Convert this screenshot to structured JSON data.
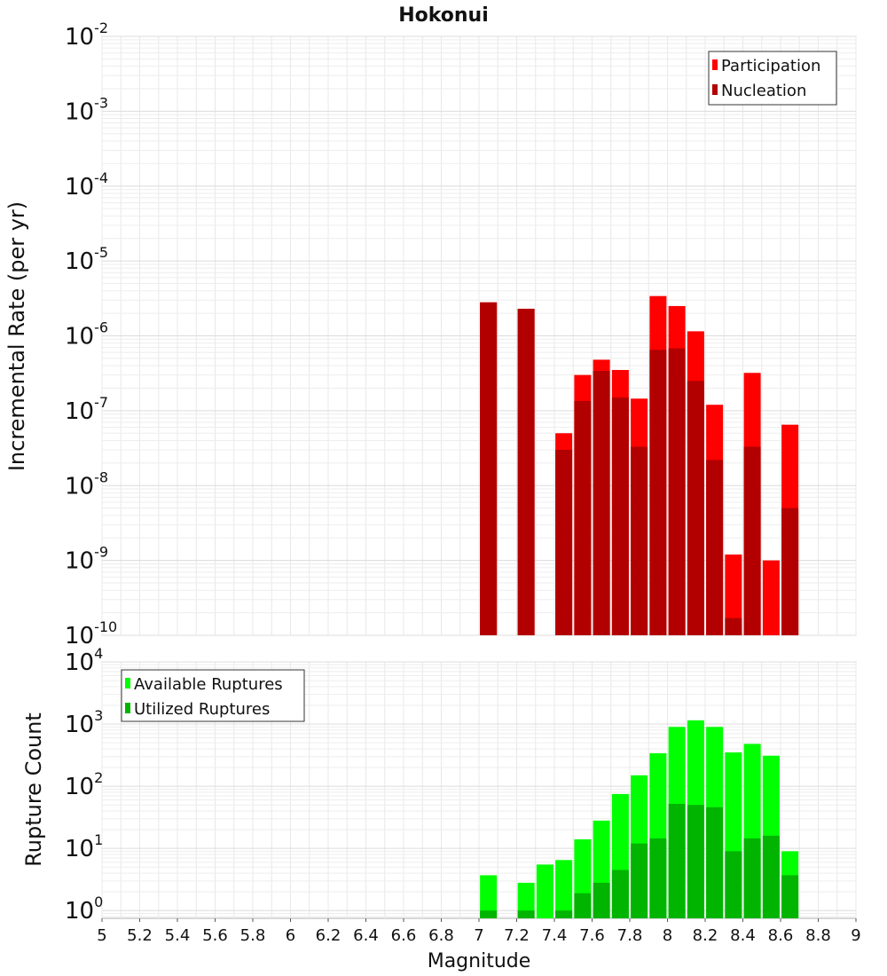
{
  "chart_data": [
    {
      "type": "bar",
      "panel": "top",
      "title": "Hokonui",
      "xlabel": "",
      "ylabel": "Incremental Rate (per yr)",
      "yscale": "log",
      "ylim": [
        1e-10,
        0.01
      ],
      "xlim": [
        5,
        9
      ],
      "x": [
        7.05,
        7.25,
        7.45,
        7.55,
        7.65,
        7.75,
        7.85,
        7.95,
        8.05,
        8.15,
        8.25,
        8.35,
        8.45,
        8.55,
        8.65
      ],
      "series": [
        {
          "name": "Participation",
          "color": "#ff0000",
          "values": [
            2.8e-06,
            2.3e-06,
            5e-08,
            3e-07,
            4.8e-07,
            3.5e-07,
            1.45e-07,
            3.4e-06,
            2.5e-06,
            1.15e-06,
            1.2e-07,
            1.2e-09,
            3.2e-07,
            1e-09,
            6.5e-08
          ]
        },
        {
          "name": "Nucleation",
          "color": "#b20000",
          "values": [
            2.8e-06,
            2.3e-06,
            3e-08,
            1.35e-07,
            3.4e-07,
            1.5e-07,
            3.3e-08,
            6.5e-07,
            6.8e-07,
            2.5e-07,
            2.2e-08,
            1.7e-10,
            3.3e-08,
            null,
            5e-09
          ]
        }
      ],
      "y_ticks": [
        {
          "base": "10",
          "exp": "-10"
        },
        {
          "base": "10",
          "exp": "-9"
        },
        {
          "base": "10",
          "exp": "-8"
        },
        {
          "base": "10",
          "exp": "-7"
        },
        {
          "base": "10",
          "exp": "-6"
        },
        {
          "base": "10",
          "exp": "-5"
        },
        {
          "base": "10",
          "exp": "-4"
        },
        {
          "base": "10",
          "exp": "-3"
        },
        {
          "base": "10",
          "exp": "-2"
        }
      ],
      "legend_position": "top-right",
      "grid": true
    },
    {
      "type": "bar",
      "panel": "bottom",
      "xlabel": "Magnitude",
      "ylabel": "Rupture Count",
      "yscale": "log",
      "ylim": [
        0.75,
        10000
      ],
      "xlim": [
        5,
        9
      ],
      "x": [
        7.05,
        7.25,
        7.35,
        7.45,
        7.55,
        7.65,
        7.75,
        7.85,
        7.95,
        8.05,
        8.15,
        8.25,
        8.35,
        8.45,
        8.55,
        8.65
      ],
      "series": [
        {
          "name": "Available Ruptures",
          "color": "#00ff00",
          "values": [
            3.7,
            2.8,
            5.5,
            6.5,
            14,
            28,
            75,
            150,
            340,
            900,
            1150,
            900,
            350,
            480,
            310,
            9
          ]
        },
        {
          "name": "Utilized Ruptures",
          "color": "#00b400",
          "values": [
            1,
            1,
            null,
            1,
            1.9,
            2.8,
            4.5,
            12,
            14.5,
            52,
            50,
            46,
            9,
            14.5,
            16,
            3.7
          ]
        }
      ],
      "x_ticks": [
        "5",
        "5.2",
        "5.4",
        "5.6",
        "5.8",
        "6",
        "6.2",
        "6.4",
        "6.6",
        "6.8",
        "7",
        "7.2",
        "7.4",
        "7.6",
        "7.8",
        "8",
        "8.2",
        "8.4",
        "8.6",
        "8.8",
        "9"
      ],
      "y_ticks": [
        {
          "base": "10",
          "exp": "0"
        },
        {
          "base": "10",
          "exp": "1"
        },
        {
          "base": "10",
          "exp": "2"
        },
        {
          "base": "10",
          "exp": "3"
        },
        {
          "base": "10",
          "exp": "4"
        }
      ],
      "legend_position": "top-left",
      "grid": true
    }
  ]
}
